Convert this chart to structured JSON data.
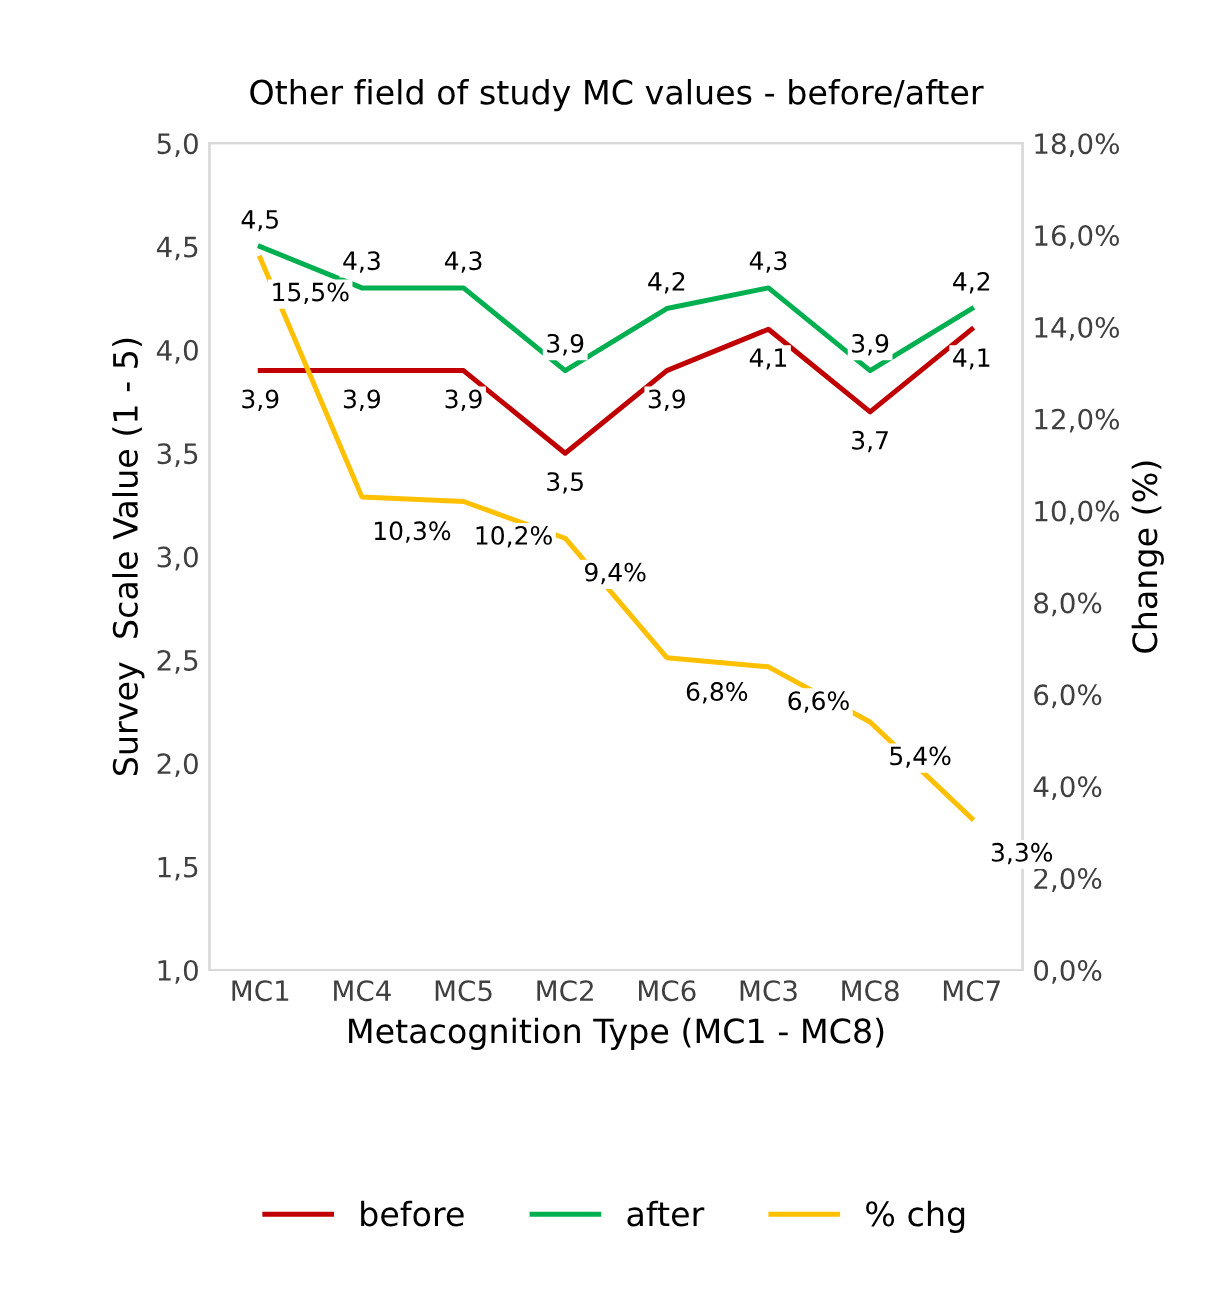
{
  "chart_data": {
    "type": "line",
    "title": "Other field of study MC values - before/after",
    "xlabel": "Metacognition Type (MC1 - MC8)",
    "ylabel": "Survey  Scale Value (1 - 5)",
    "y2label": "Change (%)",
    "categories": [
      "MC1",
      "MC4",
      "MC5",
      "MC2",
      "MC6",
      "MC3",
      "MC8",
      "MC7"
    ],
    "ylim": [
      1,
      5
    ],
    "yticks": [
      {
        "value": 1,
        "label": "1,0"
      },
      {
        "value": 1.5,
        "label": "1,5"
      },
      {
        "value": 2,
        "label": "2,0"
      },
      {
        "value": 2.5,
        "label": "2,5"
      },
      {
        "value": 3,
        "label": "3,0"
      },
      {
        "value": 3.5,
        "label": "3,5"
      },
      {
        "value": 4,
        "label": "4,0"
      },
      {
        "value": 4.5,
        "label": "4,5"
      },
      {
        "value": 5,
        "label": "5,0"
      }
    ],
    "y2lim": [
      0,
      18
    ],
    "y2ticks": [
      {
        "value": 0,
        "label": "0,0%"
      },
      {
        "value": 2,
        "label": "2,0%"
      },
      {
        "value": 4,
        "label": "4,0%"
      },
      {
        "value": 6,
        "label": "6,0%"
      },
      {
        "value": 8,
        "label": "8,0%"
      },
      {
        "value": 10,
        "label": "10,0%"
      },
      {
        "value": 12,
        "label": "12,0%"
      },
      {
        "value": 14,
        "label": "14,0%"
      },
      {
        "value": 16,
        "label": "16,0%"
      },
      {
        "value": 18,
        "label": "18,0%"
      }
    ],
    "series": [
      {
        "name": "before",
        "color": "#c00000",
        "values": [
          3.9,
          3.9,
          3.9,
          3.5,
          3.9,
          4.1,
          3.7,
          4.1
        ],
        "value_labels": [
          "3,9",
          "3,9",
          "3,9",
          "3,5",
          "3,9",
          "4,1",
          "3,7",
          "4,1"
        ]
      },
      {
        "name": "after",
        "color": "#00b050",
        "values": [
          4.5,
          4.3,
          4.3,
          3.9,
          4.2,
          4.3,
          3.9,
          4.2
        ],
        "value_labels": [
          "4,5",
          "4,3",
          "4,3",
          "3,9",
          "4,2",
          "4,3",
          "3,9",
          "4,2"
        ]
      },
      {
        "name": "% chg",
        "color": "#ffc000",
        "axis": "y2",
        "values": [
          15.5,
          10.3,
          10.2,
          9.4,
          6.8,
          6.6,
          5.4,
          3.3
        ],
        "value_labels": [
          "15,5%",
          "10,3%",
          "10,2%",
          "9,4%",
          "6,8%",
          "6,6%",
          "5,4%",
          "3,3%"
        ]
      }
    ],
    "grid": false,
    "legend": "bottom",
    "marker": "none",
    "line_style": "solid"
  }
}
